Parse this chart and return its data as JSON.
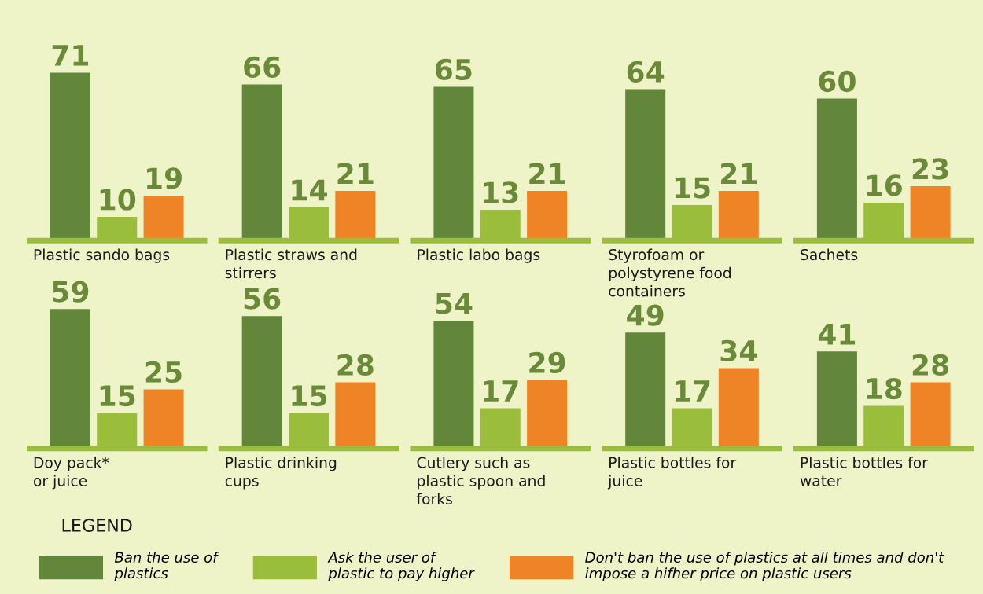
{
  "chart_data": [
    {
      "type": "bar",
      "xlabel": "Plastic sando bags",
      "categories": [
        null
      ],
      "data_labels": true,
      "series": [
        {
          "color": "#62863a",
          "values": [
            71
          ]
        },
        {
          "color": "#9bbd3c",
          "values": [
            10
          ]
        },
        {
          "color": "#ef8427",
          "values": [
            19
          ]
        }
      ]
    },
    {
      "type": "bar",
      "xlabel": "Plastic straws and\nstirrers",
      "categories": [
        null
      ],
      "data_labels": true,
      "series": [
        {
          "color": "#62863a",
          "values": [
            66
          ]
        },
        {
          "color": "#9bbd3c",
          "values": [
            14
          ]
        },
        {
          "color": "#ef8427",
          "values": [
            21
          ]
        }
      ]
    },
    {
      "type": "bar",
      "xlabel": "Plastic labo bags",
      "categories": [
        null
      ],
      "data_labels": true,
      "series": [
        {
          "color": "#62863a",
          "values": [
            65
          ]
        },
        {
          "color": "#9bbd3c",
          "values": [
            13
          ]
        },
        {
          "color": "#ef8427",
          "values": [
            21
          ]
        }
      ]
    },
    {
      "type": "bar",
      "xlabel": "Styrofoam or\npolystyrene food\ncontainers",
      "categories": [
        null
      ],
      "data_labels": true,
      "series": [
        {
          "color": "#62863a",
          "values": [
            64
          ]
        },
        {
          "color": "#9bbd3c",
          "values": [
            15
          ]
        },
        {
          "color": "#ef8427",
          "values": [
            21
          ]
        }
      ]
    },
    {
      "type": "bar",
      "xlabel": "Sachets",
      "categories": [
        null
      ],
      "data_labels": true,
      "series": [
        {
          "color": "#62863a",
          "values": [
            60
          ]
        },
        {
          "color": "#9bbd3c",
          "values": [
            16
          ]
        },
        {
          "color": "#ef8427",
          "values": [
            23
          ]
        }
      ]
    },
    {
      "type": "bar",
      "xlabel": "Doy pack*\nor juice",
      "categories": [
        null
      ],
      "data_labels": true,
      "legend": "bottom",
      "annotations": [
        "LEGEND"
      ],
      "series": [
        {
          "name": "Ban the use of\nplastics",
          "color": "#62863a",
          "values": [
            59
          ]
        },
        {
          "name": "Ask the user of\nplastic to pay higher",
          "color": "#9bbd3c",
          "values": [
            15
          ]
        },
        {
          "name": "Don't ban the use of plastics at all times and don't\nimpose a hifher price on plastic users",
          "color": "#ef8427",
          "values": [
            25
          ]
        }
      ]
    },
    {
      "type": "bar",
      "xlabel": "Plastic drinking\ncups",
      "categories": [
        null
      ],
      "data_labels": true,
      "series": [
        {
          "color": "#62863a",
          "values": [
            56
          ]
        },
        {
          "color": "#9bbd3c",
          "values": [
            15
          ]
        },
        {
          "color": "#ef8427",
          "values": [
            28
          ]
        }
      ]
    },
    {
      "type": "bar",
      "xlabel": "Cutlery such as\nplastic spoon and\nforks",
      "categories": [
        null
      ],
      "data_labels": true,
      "series": [
        {
          "color": "#62863a",
          "values": [
            54
          ]
        },
        {
          "color": "#9bbd3c",
          "values": [
            17
          ]
        },
        {
          "color": "#ef8427",
          "values": [
            29
          ]
        }
      ]
    },
    {
      "type": "bar",
      "xlabel": "Plastic bottles for\njuice",
      "categories": [
        null
      ],
      "data_labels": true,
      "series": [
        {
          "color": "#62863a",
          "values": [
            49
          ]
        },
        {
          "color": "#9bbd3c",
          "values": [
            17
          ]
        },
        {
          "color": "#ef8427",
          "values": [
            34
          ]
        }
      ]
    },
    {
      "type": "bar",
      "xlabel": "Plastic bottles for\nwater",
      "categories": [
        null
      ],
      "data_labels": true,
      "series": [
        {
          "color": "#62863a",
          "values": [
            41
          ]
        },
        {
          "color": "#9bbd3c",
          "values": [
            18
          ]
        },
        {
          "color": "#ef8427",
          "values": [
            28
          ]
        }
      ]
    }
  ]
}
